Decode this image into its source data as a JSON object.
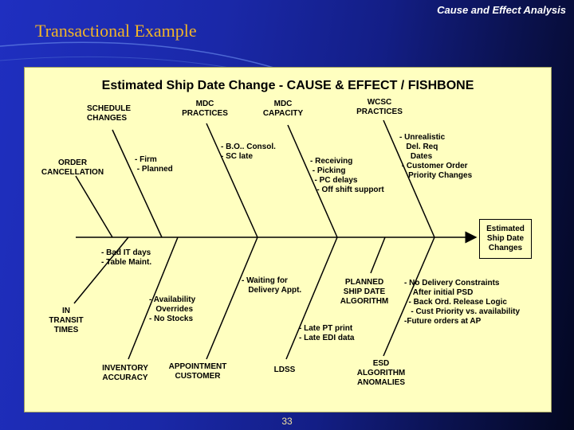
{
  "slide": {
    "header": "Cause and Effect Analysis",
    "title": "Transactional Example",
    "page_number": "33"
  },
  "diagram": {
    "title": "Estimated Ship Date Change  - CAUSE & EFFECT / FISHBONE",
    "effect": "Estimated\nShip Date\nChanges",
    "top_categories": [
      {
        "name": "SCHEDULE\nCHANGES",
        "causes": "- Firm\n - Planned"
      },
      {
        "name": "MDC\nPRACTICES",
        "causes": "- B.O.. Consol.\n- SC late"
      },
      {
        "name": "MDC\nCAPACITY",
        "causes": "- Receiving\n - Picking\n  - PC delays\n   - Off shift support"
      },
      {
        "name": "WCSC\nPRACTICES",
        "causes": "- Unrealistic\n   Del. Req\n     Dates\n - Customer Order\n    Priority Changes"
      },
      {
        "name": "ORDER\nCANCELLATION",
        "causes": ""
      }
    ],
    "bottom_categories": [
      {
        "name": "IN\nTRANSIT\nTIMES",
        "causes": "- Bad IT days\n- Table Maint."
      },
      {
        "name": "INVENTORY\nACCURACY",
        "causes": "- Availability\n   Overrides\n- No Stocks"
      },
      {
        "name": "APPOINTMENT\nCUSTOMER",
        "causes": "- Waiting for\n   Delivery Appt."
      },
      {
        "name": "LDSS",
        "causes": "- Late PT print\n- Late EDI data"
      },
      {
        "name": "PLANNED\nSHIP DATE\nALGORITHM",
        "causes": ""
      },
      {
        "name": "ESD\nALGORITHM\nANOMALIES",
        "causes": "- No Delivery Constraints\n    After initial PSD\n  - Back Ord. Release Logic\n   - Cust Priority vs. availability\n-Future orders at AP"
      }
    ]
  }
}
